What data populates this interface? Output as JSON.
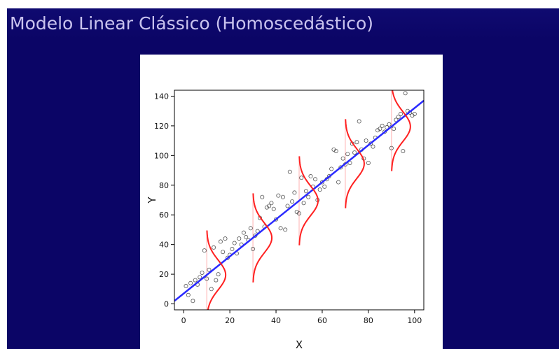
{
  "slide": {
    "title": "Modelo Linear Clássico (Homoscedástico)",
    "background_color": "#0b0566",
    "title_color": "#c9c3ee"
  },
  "chart_data": {
    "type": "scatter",
    "xlabel": "X",
    "ylabel": "Y",
    "xlim": [
      -4,
      104
    ],
    "ylim": [
      -4,
      144
    ],
    "x_ticks": [
      0,
      20,
      40,
      60,
      80,
      100
    ],
    "y_ticks": [
      0,
      20,
      40,
      60,
      80,
      100,
      120,
      140
    ],
    "grid": false,
    "points": [
      {
        "x": 1,
        "y": 12
      },
      {
        "x": 2,
        "y": 6
      },
      {
        "x": 3,
        "y": 14
      },
      {
        "x": 4,
        "y": 2
      },
      {
        "x": 5,
        "y": 16
      },
      {
        "x": 6,
        "y": 13
      },
      {
        "x": 7,
        "y": 18
      },
      {
        "x": 8,
        "y": 21
      },
      {
        "x": 9,
        "y": 36
      },
      {
        "x": 10,
        "y": 17
      },
      {
        "x": 11,
        "y": 23
      },
      {
        "x": 12,
        "y": 10
      },
      {
        "x": 13,
        "y": 38
      },
      {
        "x": 14,
        "y": 16
      },
      {
        "x": 15,
        "y": 20
      },
      {
        "x": 16,
        "y": 42
      },
      {
        "x": 17,
        "y": 35
      },
      {
        "x": 18,
        "y": 44
      },
      {
        "x": 19,
        "y": 31
      },
      {
        "x": 20,
        "y": 33
      },
      {
        "x": 21,
        "y": 37
      },
      {
        "x": 22,
        "y": 41
      },
      {
        "x": 23,
        "y": 34
      },
      {
        "x": 24,
        "y": 44
      },
      {
        "x": 25,
        "y": 40
      },
      {
        "x": 26,
        "y": 48
      },
      {
        "x": 27,
        "y": 45
      },
      {
        "x": 28,
        "y": 43
      },
      {
        "x": 29,
        "y": 51
      },
      {
        "x": 30,
        "y": 37
      },
      {
        "x": 31,
        "y": 46
      },
      {
        "x": 32,
        "y": 49
      },
      {
        "x": 33,
        "y": 58
      },
      {
        "x": 34,
        "y": 72
      },
      {
        "x": 35,
        "y": 52
      },
      {
        "x": 36,
        "y": 65
      },
      {
        "x": 37,
        "y": 66
      },
      {
        "x": 38,
        "y": 68
      },
      {
        "x": 39,
        "y": 64
      },
      {
        "x": 40,
        "y": 57
      },
      {
        "x": 41,
        "y": 73
      },
      {
        "x": 42,
        "y": 51
      },
      {
        "x": 43,
        "y": 72
      },
      {
        "x": 44,
        "y": 50
      },
      {
        "x": 45,
        "y": 66
      },
      {
        "x": 46,
        "y": 89
      },
      {
        "x": 47,
        "y": 69
      },
      {
        "x": 48,
        "y": 75
      },
      {
        "x": 49,
        "y": 62
      },
      {
        "x": 50,
        "y": 61
      },
      {
        "x": 51,
        "y": 85
      },
      {
        "x": 52,
        "y": 68
      },
      {
        "x": 53,
        "y": 76
      },
      {
        "x": 54,
        "y": 72
      },
      {
        "x": 55,
        "y": 86
      },
      {
        "x": 56,
        "y": 79
      },
      {
        "x": 57,
        "y": 84
      },
      {
        "x": 58,
        "y": 70
      },
      {
        "x": 59,
        "y": 77
      },
      {
        "x": 60,
        "y": 82
      },
      {
        "x": 61,
        "y": 79
      },
      {
        "x": 62,
        "y": 84
      },
      {
        "x": 63,
        "y": 86
      },
      {
        "x": 64,
        "y": 91
      },
      {
        "x": 65,
        "y": 104
      },
      {
        "x": 66,
        "y": 103
      },
      {
        "x": 67,
        "y": 82
      },
      {
        "x": 68,
        "y": 92
      },
      {
        "x": 69,
        "y": 98
      },
      {
        "x": 70,
        "y": 94
      },
      {
        "x": 71,
        "y": 101
      },
      {
        "x": 72,
        "y": 95
      },
      {
        "x": 73,
        "y": 108
      },
      {
        "x": 74,
        "y": 102
      },
      {
        "x": 75,
        "y": 109
      },
      {
        "x": 76,
        "y": 123
      },
      {
        "x": 77,
        "y": 104
      },
      {
        "x": 78,
        "y": 98
      },
      {
        "x": 79,
        "y": 110
      },
      {
        "x": 80,
        "y": 95
      },
      {
        "x": 81,
        "y": 108
      },
      {
        "x": 82,
        "y": 106
      },
      {
        "x": 83,
        "y": 112
      },
      {
        "x": 84,
        "y": 117
      },
      {
        "x": 85,
        "y": 118
      },
      {
        "x": 86,
        "y": 120
      },
      {
        "x": 87,
        "y": 116
      },
      {
        "x": 88,
        "y": 119
      },
      {
        "x": 89,
        "y": 121
      },
      {
        "x": 90,
        "y": 105
      },
      {
        "x": 91,
        "y": 118
      },
      {
        "x": 92,
        "y": 124
      },
      {
        "x": 93,
        "y": 126
      },
      {
        "x": 94,
        "y": 128
      },
      {
        "x": 95,
        "y": 103
      },
      {
        "x": 96,
        "y": 142
      },
      {
        "x": 97,
        "y": 130
      },
      {
        "x": 98,
        "y": 129
      },
      {
        "x": 99,
        "y": 127
      },
      {
        "x": 100,
        "y": 128
      }
    ],
    "regression_line": {
      "intercept": 7,
      "slope": 1.25,
      "x_range": [
        -4,
        104
      ],
      "color": "#2a2aff"
    },
    "conditional_densities": {
      "x_positions": [
        10,
        30,
        50,
        70,
        90
      ],
      "sd": 10,
      "color": "#ff2020",
      "guide_color": "#ffb0b0"
    },
    "marker_color": "#555555"
  }
}
